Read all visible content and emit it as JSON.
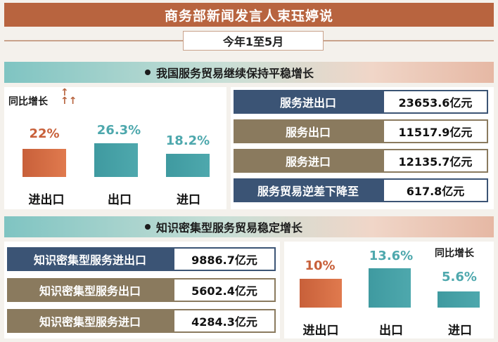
{
  "title": "商务部新闻发言人束珏婷说",
  "date": "今年1至5月",
  "colors": {
    "orange": "#c8603a",
    "teal": "#4ea8ad",
    "navy": "#3b5475",
    "olive": "#8a7a5e",
    "title_bg": "#b8643f"
  },
  "section1": {
    "heading": "我国服务贸易继续保持平稳增长",
    "yoy_label": "同比增长",
    "chart": {
      "categories": [
        "进出口",
        "出口",
        "进口"
      ],
      "values": [
        "22%",
        "26.3%",
        "18.2%"
      ],
      "numeric": [
        22,
        26.3,
        18.2
      ]
    },
    "rows": [
      {
        "label": "服务进出口",
        "value": "23653.6亿元"
      },
      {
        "label": "服务出口",
        "value": "11517.9亿元"
      },
      {
        "label": "服务进口",
        "value": "12135.7亿元"
      },
      {
        "label": "服务贸易逆差下降至",
        "value": "617.8亿元"
      }
    ]
  },
  "section2": {
    "heading": "知识密集型服务贸易稳定增长",
    "yoy_label": "同比增长",
    "rows": [
      {
        "label": "知识密集型服务进出口",
        "value": "9886.7亿元"
      },
      {
        "label": "知识密集型服务出口",
        "value": "5602.4亿元"
      },
      {
        "label": "知识密集型服务进口",
        "value": "4284.3亿元"
      }
    ],
    "chart": {
      "categories": [
        "进出口",
        "出口",
        "进口"
      ],
      "values": [
        "10%",
        "13.6%",
        "5.6%"
      ],
      "numeric": [
        10,
        13.6,
        5.6
      ]
    }
  }
}
